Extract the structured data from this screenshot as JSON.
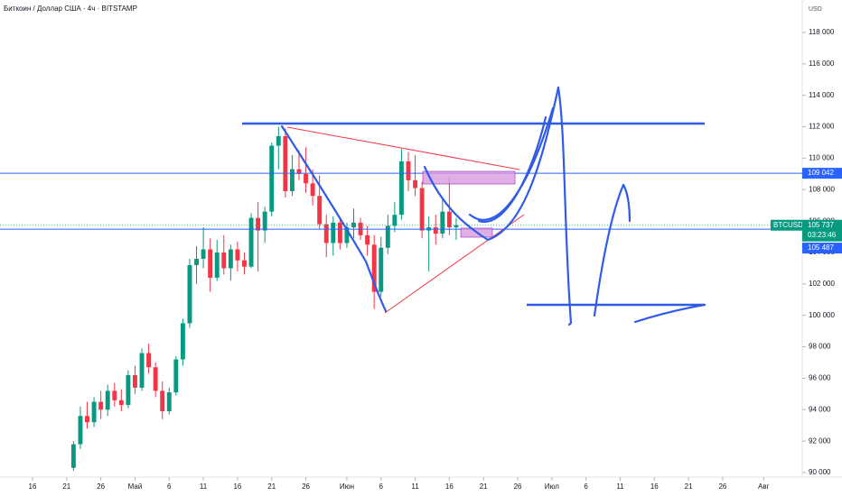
{
  "chart_data": {
    "type": "candlestick",
    "title": "Биткоин / Доллар США · 4ч · BITSTAMP",
    "currency": "USD",
    "up_color": "#089981",
    "down_color": "#f23645",
    "xlim": [
      0,
      110
    ],
    "xticks": [
      {
        "value": 0,
        "label": "16"
      },
      {
        "value": 5,
        "label": "21"
      },
      {
        "value": 10,
        "label": "26"
      },
      {
        "value": 15,
        "label": "Май"
      },
      {
        "value": 20,
        "label": "6"
      },
      {
        "value": 25,
        "label": "11"
      },
      {
        "value": 30,
        "label": "16"
      },
      {
        "value": 35,
        "label": "21"
      },
      {
        "value": 40,
        "label": "26"
      },
      {
        "value": 46,
        "label": "Июн"
      },
      {
        "value": 51,
        "label": "6"
      },
      {
        "value": 56,
        "label": "11"
      },
      {
        "value": 61,
        "label": "16"
      },
      {
        "value": 66,
        "label": "21"
      },
      {
        "value": 71,
        "label": "26"
      },
      {
        "value": 76,
        "label": "Июл"
      },
      {
        "value": 81,
        "label": "6"
      },
      {
        "value": 86,
        "label": "11"
      },
      {
        "value": 91,
        "label": "16"
      },
      {
        "value": 96,
        "label": "21"
      },
      {
        "value": 101,
        "label": "26"
      },
      {
        "value": 107,
        "label": "Авг"
      }
    ],
    "ylim": [
      90000,
      118000
    ],
    "yticks": [
      {
        "value": 90000,
        "label": "90 000"
      },
      {
        "value": 92000,
        "label": "92 000"
      },
      {
        "value": 94000,
        "label": "94 000"
      },
      {
        "value": 96000,
        "label": "96 000"
      },
      {
        "value": 98000,
        "label": "98 000"
      },
      {
        "value": 100000,
        "label": "100 000"
      },
      {
        "value": 102000,
        "label": "102 000"
      },
      {
        "value": 104000,
        "label": "104 000"
      },
      {
        "value": 106000,
        "label": "106 000"
      },
      {
        "value": 108000,
        "label": "108 000"
      },
      {
        "value": 110000,
        "label": "110 000"
      },
      {
        "value": 112000,
        "label": "112 000"
      },
      {
        "value": 114000,
        "label": "114 000"
      },
      {
        "value": 116000,
        "label": "116 000"
      },
      {
        "value": 118000,
        "label": "118 000"
      }
    ],
    "x": [
      6,
      7,
      8,
      9,
      10,
      11,
      12,
      13,
      14,
      15,
      16,
      17,
      18,
      19,
      20,
      21,
      22,
      23,
      24,
      25,
      26,
      27,
      28,
      29,
      30,
      31,
      32,
      33,
      34,
      35,
      36,
      37,
      38,
      39,
      40,
      41,
      42,
      43,
      44,
      45,
      46,
      47,
      48,
      49,
      50,
      51,
      52,
      53,
      54,
      55,
      56,
      57,
      58,
      59,
      60,
      61,
      62
    ],
    "ohlc": [
      [
        90300,
        92000,
        90100,
        91800
      ],
      [
        91800,
        94200,
        91500,
        93600
      ],
      [
        93600,
        94500,
        92800,
        93200
      ],
      [
        93200,
        94800,
        92900,
        94500
      ],
      [
        94500,
        95200,
        93400,
        94000
      ],
      [
        94000,
        95600,
        93600,
        95200
      ],
      [
        95200,
        95700,
        94200,
        94600
      ],
      [
        94600,
        95300,
        93900,
        94300
      ],
      [
        94300,
        96500,
        94100,
        96200
      ],
      [
        96200,
        96800,
        95000,
        95400
      ],
      [
        95400,
        97900,
        95200,
        97600
      ],
      [
        97600,
        98200,
        96300,
        96700
      ],
      [
        96700,
        97000,
        94800,
        95200
      ],
      [
        95200,
        95800,
        93400,
        93900
      ],
      [
        93900,
        95400,
        93700,
        95100
      ],
      [
        95100,
        97400,
        94900,
        97200
      ],
      [
        97200,
        99800,
        96800,
        99500
      ],
      [
        99500,
        103600,
        99200,
        103200
      ],
      [
        103200,
        104400,
        102000,
        103600
      ],
      [
        103600,
        105600,
        103000,
        104200
      ],
      [
        104200,
        104900,
        101500,
        102400
      ],
      [
        102400,
        104800,
        102200,
        104000
      ],
      [
        104000,
        105100,
        102600,
        103000
      ],
      [
        103000,
        104500,
        102200,
        104200
      ],
      [
        104200,
        104700,
        102800,
        103500
      ],
      [
        103500,
        104000,
        102600,
        103100
      ],
      [
        103100,
        106500,
        103000,
        106200
      ],
      [
        106200,
        107200,
        102800,
        105400
      ],
      [
        105400,
        106900,
        104600,
        106600
      ],
      [
        106600,
        111000,
        106300,
        110800
      ],
      [
        110800,
        112000,
        109300,
        111400
      ],
      [
        111400,
        111900,
        107500,
        107900
      ],
      [
        107900,
        110200,
        107600,
        109300
      ],
      [
        109300,
        110500,
        108600,
        109000
      ],
      [
        109000,
        110700,
        107800,
        108400
      ],
      [
        108400,
        109300,
        107000,
        107600
      ],
      [
        107600,
        108900,
        105500,
        105800
      ],
      [
        105800,
        106400,
        103700,
        104600
      ],
      [
        104600,
        106300,
        103800,
        105900
      ],
      [
        105900,
        106200,
        104200,
        104600
      ],
      [
        104600,
        105900,
        104300,
        105600
      ],
      [
        105600,
        106800,
        104900,
        105900
      ],
      [
        105900,
        106200,
        104800,
        105100
      ],
      [
        105100,
        105700,
        103800,
        104500
      ],
      [
        104500,
        105100,
        100400,
        101500
      ],
      [
        101500,
        105000,
        101200,
        104300
      ],
      [
        104300,
        106400,
        103900,
        105700
      ],
      [
        105700,
        107200,
        105300,
        106400
      ],
      [
        106400,
        110600,
        106100,
        109800
      ],
      [
        109800,
        110400,
        107900,
        108600
      ],
      [
        108600,
        110200,
        107600,
        108100
      ],
      [
        108100,
        108500,
        104900,
        105400
      ],
      [
        105400,
        106300,
        102800,
        105600
      ],
      [
        105600,
        106400,
        104500,
        105200
      ],
      [
        105200,
        107500,
        104900,
        106600
      ],
      [
        106600,
        108800,
        105100,
        105600
      ],
      [
        105600,
        106200,
        104800,
        105737
      ]
    ],
    "hlines": [
      {
        "value": 109042,
        "label": "109 042",
        "color": "#2962ff"
      },
      {
        "value": 105487,
        "label": "105 487",
        "color": "#2962ff"
      }
    ],
    "last": {
      "symbol": "BTCUSD",
      "value": 105737,
      "label": "105 737",
      "countdown": "03:23:46"
    }
  }
}
